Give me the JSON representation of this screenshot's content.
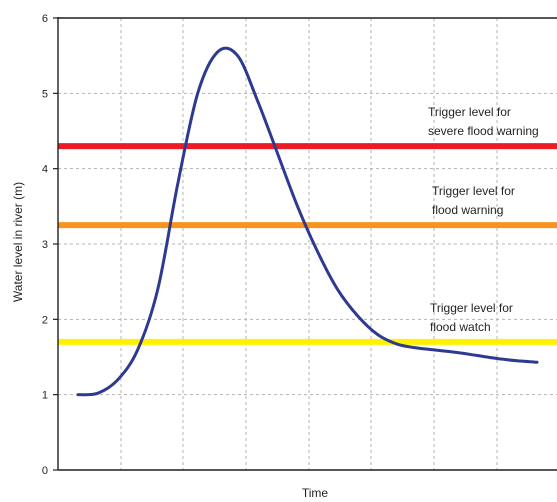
{
  "chart_data": {
    "type": "line",
    "xlabel": "Time",
    "ylabel": "Water level in river (m)",
    "ylim": [
      0,
      6
    ],
    "xlim": [
      0,
      10
    ],
    "grid": true,
    "yticks": [
      "0",
      "1",
      "2",
      "3",
      "4",
      "5",
      "6"
    ],
    "series": [
      {
        "color": "#2e3a8f",
        "x": [
          0.4,
          0.8,
          1.2,
          1.6,
          2.0,
          2.4,
          2.8,
          3.2,
          3.6,
          4.0,
          4.4,
          4.8,
          5.2,
          5.6,
          6.0,
          6.4,
          6.8,
          7.2,
          7.6,
          8.0,
          8.4,
          8.8,
          9.2,
          9.6
        ],
        "y": [
          1.0,
          1.02,
          1.2,
          1.6,
          2.4,
          3.8,
          5.0,
          5.55,
          5.5,
          4.9,
          4.2,
          3.5,
          2.9,
          2.4,
          2.05,
          1.8,
          1.67,
          1.62,
          1.59,
          1.56,
          1.52,
          1.48,
          1.45,
          1.43
        ]
      }
    ],
    "thresholds": [
      {
        "value": 4.3,
        "color": "#ed1c24",
        "label_lines": [
          "Trigger level for",
          "severe flood warning"
        ]
      },
      {
        "value": 3.25,
        "color": "#f7941d",
        "label_lines": [
          "Trigger level for",
          "flood warning"
        ]
      },
      {
        "value": 1.7,
        "color": "#fff200",
        "label_lines": [
          "Trigger level for",
          "flood watch"
        ]
      }
    ]
  }
}
